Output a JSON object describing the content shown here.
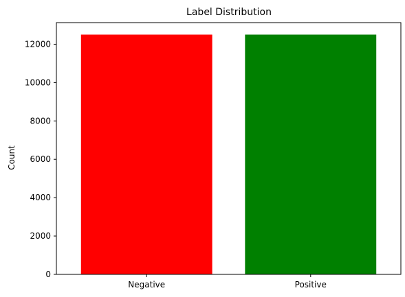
{
  "chart_data": {
    "type": "bar",
    "title": "Label Distribution",
    "xlabel": "",
    "ylabel": "Count",
    "categories": [
      "Negative",
      "Positive"
    ],
    "values": [
      12500,
      12500
    ],
    "colors": [
      "#ff0000",
      "#008000"
    ],
    "ylim": [
      0,
      13125
    ],
    "yticks": [
      0,
      2000,
      4000,
      6000,
      8000,
      10000,
      12000
    ],
    "grid": false,
    "legend": "none"
  }
}
